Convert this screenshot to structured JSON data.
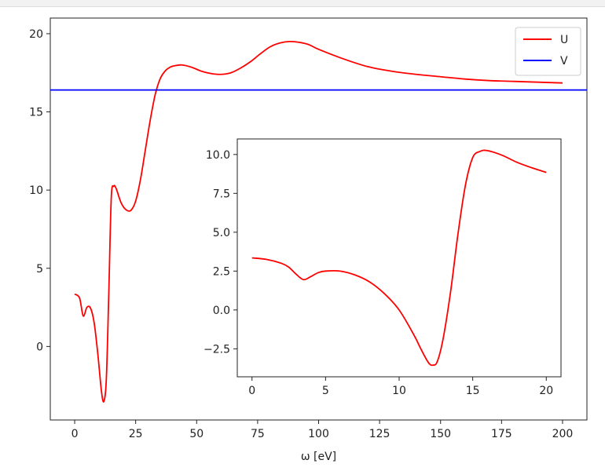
{
  "chart_data": [
    {
      "id": "main",
      "type": "line",
      "xlabel": "ω [eV]",
      "ylabel": "",
      "xlim": [
        -10,
        210
      ],
      "ylim": [
        -4.7,
        21
      ],
      "xticks": [
        0,
        25,
        50,
        75,
        100,
        125,
        150,
        175,
        200
      ],
      "yticks": [
        0,
        5,
        10,
        15,
        20
      ],
      "grid": false,
      "legend_position": "top-right",
      "series": [
        {
          "name": "U",
          "color": "#ff0000",
          "kind": "curve",
          "x": [
            0,
            2,
            3.5,
            5,
            6.5,
            8,
            9.5,
            11,
            12,
            13,
            14,
            15,
            16,
            17,
            19,
            21,
            23,
            25,
            27,
            29,
            31,
            33,
            35,
            37,
            39,
            41,
            44,
            48,
            52,
            56,
            60,
            64,
            68,
            72,
            76,
            80,
            84,
            88,
            92,
            96,
            100,
            110,
            120,
            130,
            140,
            150,
            160,
            170,
            180,
            190,
            200
          ],
          "y": [
            3.35,
            3.1,
            1.95,
            2.5,
            2.45,
            1.5,
            -0.5,
            -2.9,
            -3.5,
            -2.0,
            3.5,
            9.5,
            10.25,
            10.1,
            9.2,
            8.75,
            8.7,
            9.3,
            10.7,
            12.6,
            14.5,
            16.1,
            17.1,
            17.6,
            17.85,
            17.95,
            18.0,
            17.85,
            17.6,
            17.45,
            17.4,
            17.5,
            17.8,
            18.2,
            18.7,
            19.15,
            19.4,
            19.5,
            19.45,
            19.3,
            19.0,
            18.4,
            17.9,
            17.6,
            17.4,
            17.25,
            17.1,
            17.0,
            16.95,
            16.9,
            16.85
          ]
        },
        {
          "name": "V",
          "color": "#0000ff",
          "kind": "hline",
          "y": 16.4
        }
      ]
    },
    {
      "id": "inset",
      "type": "line",
      "xlim": [
        -1,
        21
      ],
      "ylim": [
        -4.3,
        11
      ],
      "xticks": [
        0,
        5,
        10,
        15,
        20
      ],
      "xtick_labels": [
        "0",
        "5",
        "10",
        "15",
        "20"
      ],
      "yticks": [
        -2.5,
        0.0,
        2.5,
        5.0,
        7.5,
        10.0
      ],
      "ytick_labels": [
        "−2.5",
        "0.0",
        "2.5",
        "5.0",
        "7.5",
        "10.0"
      ],
      "grid": false,
      "series": [
        {
          "color": "#ff0000",
          "kind": "curve",
          "x": [
            0,
            1,
            2,
            2.5,
            3,
            3.5,
            4,
            4.5,
            5,
            6,
            7,
            8,
            9,
            10,
            11,
            11.5,
            12,
            12.3,
            12.6,
            13,
            13.5,
            14,
            14.5,
            15,
            15.5,
            16,
            17,
            18,
            19,
            20
          ],
          "y": [
            3.35,
            3.25,
            3.0,
            2.75,
            2.3,
            1.95,
            2.15,
            2.4,
            2.5,
            2.5,
            2.25,
            1.8,
            1.05,
            0.0,
            -1.6,
            -2.55,
            -3.4,
            -3.55,
            -3.3,
            -1.8,
            1.2,
            4.9,
            8.0,
            9.8,
            10.2,
            10.25,
            9.95,
            9.5,
            9.15,
            8.85
          ]
        }
      ]
    }
  ]
}
